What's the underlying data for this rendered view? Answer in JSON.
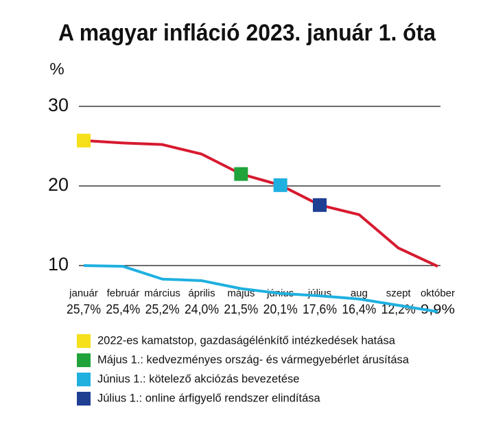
{
  "chart_data": {
    "type": "line",
    "title": "A magyar infláció 2023. január 1. óta",
    "y_label": "%",
    "categories": [
      "január",
      "február",
      "március",
      "április",
      "május",
      "június",
      "július",
      "aug",
      "szept",
      "október"
    ],
    "series": [
      {
        "color": "#d71a2f",
        "values": [
          25.7,
          25.4,
          25.2,
          24.0,
          21.5,
          20.1,
          17.6,
          16.4,
          12.2,
          9.9
        ],
        "value_labels": [
          "25,7%",
          "25,4%",
          "25,2%",
          "24,0%",
          "21,5%",
          "20,1%",
          "17,6%",
          "16,4%",
          "12,2%",
          "9,9%"
        ]
      },
      {
        "color": "#1fb0e0",
        "values": [
          10.0,
          9.9,
          8.3,
          8.1,
          7.1,
          6.5,
          6.2,
          5.8,
          5.0,
          4.2
        ]
      }
    ],
    "markers": [
      {
        "index": 0,
        "color": "#f6df1b",
        "label": "2022-es kamatstop, gazdaságélénkítő intézkedések hatása"
      },
      {
        "index": 4,
        "color": "#1fa33a",
        "label": "Május 1.: kedvezményes ország- és vármegyebérlet árusítása"
      },
      {
        "index": 5,
        "color": "#1fb0e0",
        "label": "Június 1.: kötelező akciózás bevezetése"
      },
      {
        "index": 6,
        "color": "#1f3f93",
        "label": "Július 1.: online árfigyelő rendszer elindítása"
      }
    ],
    "ylim": [
      4,
      32
    ],
    "yticks": [
      10,
      20,
      30
    ],
    "grid": true
  }
}
